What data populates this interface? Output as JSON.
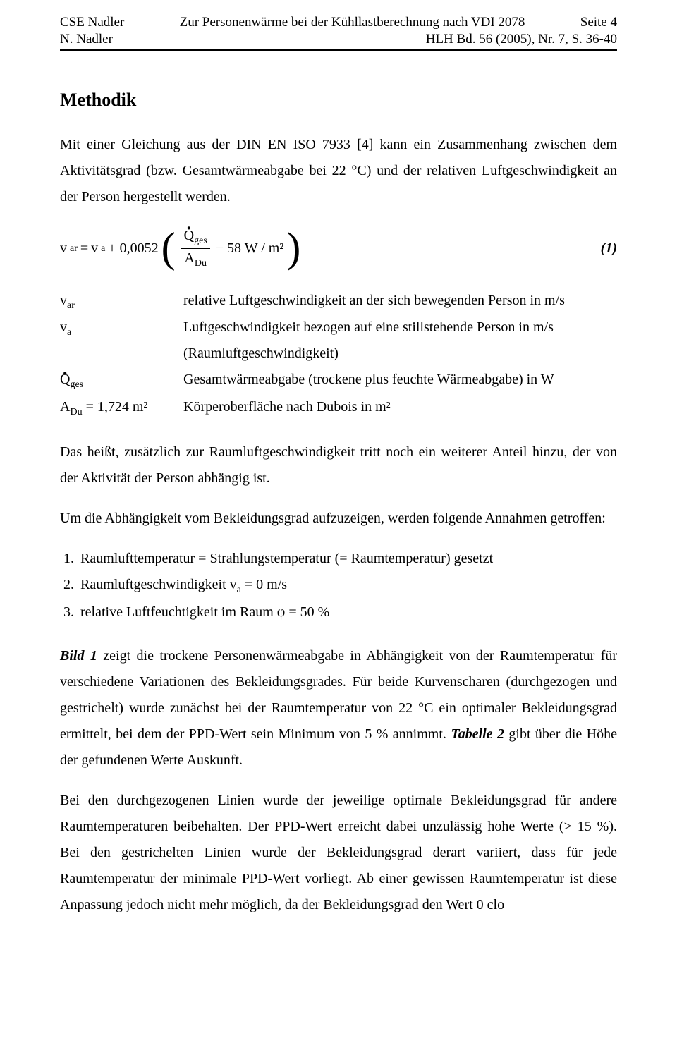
{
  "header": {
    "left1": "CSE Nadler",
    "center1": "Zur Personenwärme bei der Kühllastberechnung nach VDI 2078",
    "right1": "Seite 4",
    "left2": "N. Nadler",
    "right2": "HLH Bd. 56 (2005), Nr. 7, S. 36-40"
  },
  "section_title": "Methodik",
  "p1": "Mit einer Gleichung aus der DIN EN ISO 7933 [4] kann ein Zusammenhang zwischen dem Aktivitätsgrad (bzw. Gesamtwärmeabgabe bei 22 °C) und der relativen Luftgeschwindigkeit an der Person hergestellt werden.",
  "equation": {
    "lhs_v": "v",
    "lhs_sub": "ar",
    "eq": " = ",
    "rhs_v": "v",
    "rhs_sub": "a",
    "plus": " + 0,0052",
    "frac_num_Q": "Q",
    "frac_num_sub": "ges",
    "frac_den_A": "A",
    "frac_den_sub": "Du",
    "tail": " − 58 W / m²",
    "number": "(1)"
  },
  "defs": {
    "sym1_v": "v",
    "sym1_sub": "ar",
    "txt1": "relative Luftgeschwindigkeit an der sich bewegenden Person in m/s",
    "sym2_v": "v",
    "sym2_sub": "a",
    "txt2": "Luftgeschwindigkeit bezogen auf eine stillstehende Person in m/s (Raumluftgeschwindigkeit)",
    "sym3_Q": "Q",
    "sym3_sub": "ges",
    "txt3": "Gesamtwärmeabgabe (trockene plus feuchte Wärmeabgabe) in W",
    "sym4_A": "A",
    "sym4_sub": "Du",
    "sym4_tail": " = 1,724 m²",
    "txt4": "Körperoberfläche nach Dubois in m²"
  },
  "p2": "Das heißt, zusätzlich zur Raumluftgeschwindigkeit tritt noch ein weiterer Anteil hinzu, der von der Aktivität der Person abhängig ist.",
  "p3": "Um die Abhängigkeit vom Bekleidungsgrad aufzuzeigen, werden folgende Annahmen getroffen:",
  "assumptions": {
    "a1": "Raumlufttemperatur = Strahlungstemperatur (= Raumtemperatur) gesetzt",
    "a2_pre": "Raumluftgeschwindigkeit ",
    "a2_v": "v",
    "a2_sub": "a",
    "a2_post": " = 0 m/s",
    "a3": "relative Luftfeuchtigkeit im Raum φ = 50 %"
  },
  "p4_bold": "Bild 1",
  "p4": " zeigt die trockene Personenwärmeabgabe in Abhängigkeit von der Raumtemperatur für verschiedene Variationen des Bekleidungsgrades. Für beide Kurvenscharen (durchgezogen und gestrichelt) wurde zunächst bei der Raumtemperatur von 22 °C ein optimaler Bekleidungsgrad ermittelt, bei dem der PPD-Wert sein Minimum von 5 % annimmt. ",
  "p4_bold2": "Tabelle 2",
  "p4_tail": " gibt über die Höhe der gefundenen Werte Auskunft.",
  "p5": "Bei den durchgezogenen Linien wurde der jeweilige optimale Bekleidungsgrad für andere Raumtemperaturen beibehalten. Der PPD-Wert erreicht dabei unzulässig hohe Werte (> 15 %). Bei den gestrichelten Linien wurde der Bekleidungsgrad derart variiert, dass für jede Raumtemperatur der minimale PPD-Wert vorliegt. Ab einer gewissen Raumtemperatur ist diese Anpassung jedoch nicht mehr möglich, da der Bekleidungsgrad den Wert 0 clo"
}
